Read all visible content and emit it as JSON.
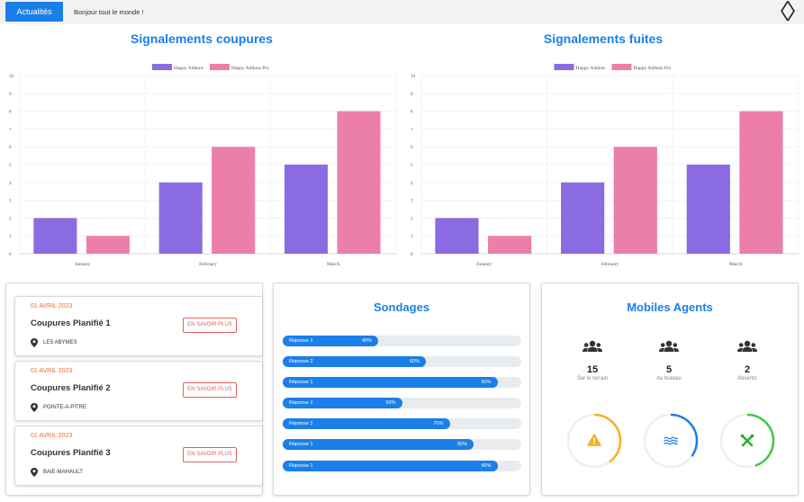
{
  "topbar": {
    "button_label": "Actualités",
    "ticker_text": "Bonjour tout le monde !",
    "prev_icon": "chevron-left-icon",
    "next_icon": "chevron-right-icon",
    "prev_glyph": "〈",
    "next_glyph": "〉"
  },
  "colors": {
    "accent": "#1a7fe8",
    "series1": "#8b6be2",
    "series2": "#ec7fa9",
    "date": "#f26a30",
    "warning": "#f5b021",
    "success": "#3ec93e"
  },
  "chart_data": [
    {
      "type": "bar",
      "title": "Signalements coupures",
      "categories": [
        "January",
        "February",
        "March"
      ],
      "series": [
        {
          "name": "Happy Addons",
          "values": [
            2,
            4,
            5
          ]
        },
        {
          "name": "Happy Addons Pro",
          "values": [
            1,
            6,
            8
          ]
        }
      ],
      "yticks": [
        "0",
        "1",
        "2",
        "3",
        "4",
        "5",
        "6",
        "7",
        "8",
        "9",
        "10"
      ],
      "ylim": [
        0,
        10
      ],
      "grid": true,
      "legend": "top-center"
    },
    {
      "type": "bar",
      "title": "Signalements fuites",
      "categories": [
        "January",
        "February",
        "March"
      ],
      "series": [
        {
          "name": "Happy Addons",
          "values": [
            2,
            4,
            5
          ]
        },
        {
          "name": "Happy Addons Pro",
          "values": [
            1,
            6,
            8
          ]
        }
      ],
      "yticks": [
        "0",
        "1",
        "2",
        "3",
        "4",
        "5",
        "6",
        "7",
        "8",
        "9",
        "10"
      ],
      "ylim": [
        0,
        10
      ],
      "grid": true,
      "legend": "top-center"
    }
  ],
  "events": [
    {
      "date": "01 AVRIL 2023",
      "title": "Coupures Planifié 1",
      "location": "LES ABYMES",
      "button": "EN SAVOIR PLUS"
    },
    {
      "date": "01 AVRIL 2023",
      "title": "Coupures Planifié 2",
      "location": "POINTE-A-PITRE",
      "button": "EN SAVOIR PLUS"
    },
    {
      "date": "01 AVRIL 2023",
      "title": "Coupures Planifié 3",
      "location": "BAIE-MAHAULT",
      "button": "EN SAVOIR PLUS"
    }
  ],
  "polls": {
    "title": "Sondages",
    "items": [
      {
        "label": "Réponse 1",
        "percent": 40,
        "pct_text": "40%"
      },
      {
        "label": "Réponse 2",
        "percent": 60,
        "pct_text": "60%"
      },
      {
        "label": "Réponse 1",
        "percent": 90,
        "pct_text": "90%"
      },
      {
        "label": "Réponse 1",
        "percent": 50,
        "pct_text": "50%"
      },
      {
        "label": "Réponse 1",
        "percent": 70,
        "pct_text": "70%"
      },
      {
        "label": "Réponse 1",
        "percent": 80,
        "pct_text": "80%"
      },
      {
        "label": "Réponse 1",
        "percent": 90,
        "pct_text": "90%"
      }
    ]
  },
  "agents": {
    "title": "Mobiles Agents",
    "stats": [
      {
        "value": "15",
        "label": "Sur le terrain",
        "icon": "users-icon"
      },
      {
        "value": "5",
        "label": "Au bureau",
        "icon": "users-icon"
      },
      {
        "value": "2",
        "label": "Absents",
        "icon": "users-icon"
      }
    ],
    "rings": [
      {
        "icon": "warning-icon",
        "color": "#f5b021",
        "level": 0.4
      },
      {
        "icon": "water-icon",
        "color": "#1a7fe8",
        "level": 0.35
      },
      {
        "icon": "tools-icon",
        "color": "#3ec93e",
        "level": 0.45
      }
    ]
  }
}
